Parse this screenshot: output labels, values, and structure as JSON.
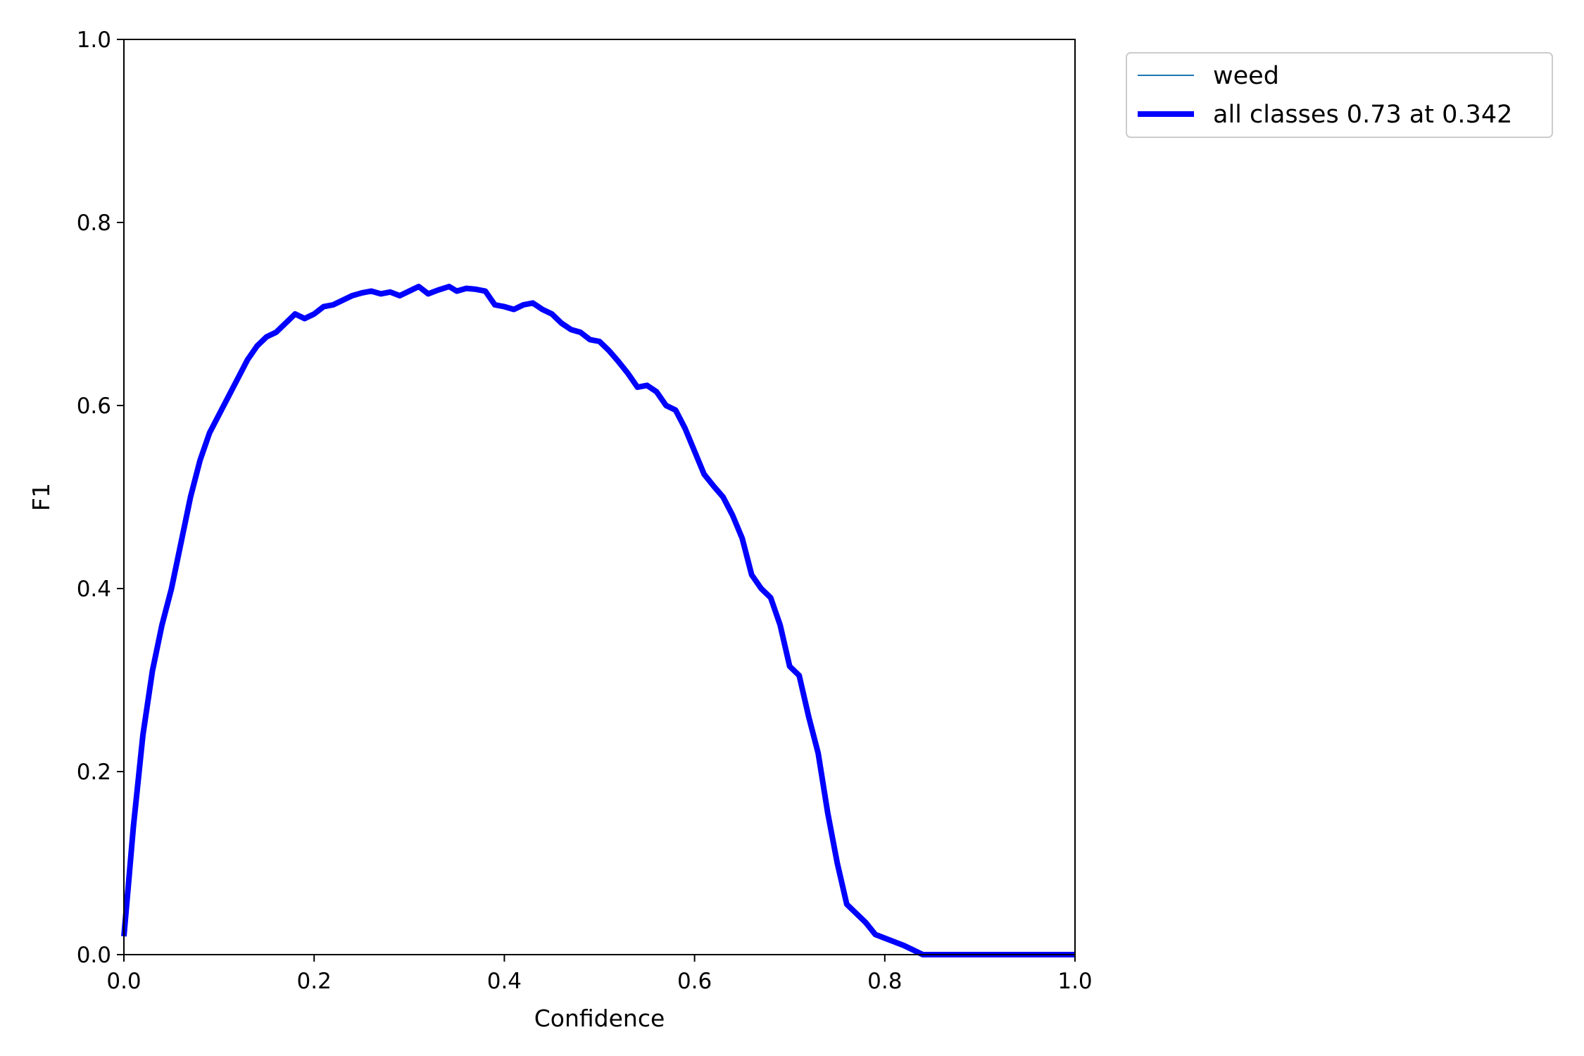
{
  "chart_data": {
    "type": "line",
    "title": "",
    "xlabel": "Confidence",
    "ylabel": "F1",
    "xlim": [
      0.0,
      1.0
    ],
    "ylim": [
      0.0,
      1.0
    ],
    "xticks": [
      "0.0",
      "0.2",
      "0.4",
      "0.6",
      "0.8",
      "1.0"
    ],
    "yticks": [
      "0.0",
      "0.2",
      "0.4",
      "0.6",
      "0.8",
      "1.0"
    ],
    "grid": false,
    "legend_placement": "outside top-right",
    "colors": {
      "weed": "#1f77b4",
      "all_classes": "#0000ff"
    },
    "series": [
      {
        "name": "weed",
        "key": "weed",
        "line_width": "thin",
        "x": [
          0.0,
          0.005,
          0.01,
          0.02,
          0.03,
          0.04,
          0.05,
          0.06,
          0.07,
          0.08,
          0.09,
          0.1,
          0.11,
          0.12,
          0.13,
          0.14,
          0.15,
          0.16,
          0.17,
          0.18,
          0.19,
          0.2,
          0.21,
          0.22,
          0.23,
          0.24,
          0.25,
          0.26,
          0.27,
          0.28,
          0.29,
          0.3,
          0.31,
          0.32,
          0.33,
          0.342,
          0.35,
          0.36,
          0.37,
          0.38,
          0.39,
          0.4,
          0.41,
          0.42,
          0.43,
          0.44,
          0.45,
          0.46,
          0.47,
          0.48,
          0.49,
          0.5,
          0.51,
          0.52,
          0.53,
          0.54,
          0.55,
          0.56,
          0.57,
          0.58,
          0.59,
          0.6,
          0.61,
          0.62,
          0.63,
          0.64,
          0.65,
          0.66,
          0.67,
          0.68,
          0.69,
          0.7,
          0.71,
          0.72,
          0.73,
          0.74,
          0.75,
          0.76,
          0.77,
          0.78,
          0.79,
          0.8,
          0.81,
          0.82,
          0.83,
          0.84,
          0.85,
          0.87,
          0.89,
          0.895,
          0.95,
          1.0
        ],
        "y": [
          0.02,
          0.08,
          0.14,
          0.24,
          0.31,
          0.36,
          0.4,
          0.45,
          0.5,
          0.54,
          0.57,
          0.59,
          0.61,
          0.63,
          0.65,
          0.665,
          0.675,
          0.68,
          0.69,
          0.7,
          0.695,
          0.7,
          0.708,
          0.71,
          0.715,
          0.72,
          0.723,
          0.725,
          0.722,
          0.724,
          0.72,
          0.725,
          0.73,
          0.722,
          0.726,
          0.73,
          0.725,
          0.728,
          0.727,
          0.725,
          0.71,
          0.708,
          0.705,
          0.71,
          0.712,
          0.705,
          0.7,
          0.69,
          0.683,
          0.68,
          0.672,
          0.67,
          0.66,
          0.648,
          0.635,
          0.62,
          0.622,
          0.615,
          0.6,
          0.595,
          0.575,
          0.55,
          0.525,
          0.512,
          0.5,
          0.48,
          0.455,
          0.415,
          0.4,
          0.39,
          0.36,
          0.315,
          0.305,
          0.26,
          0.22,
          0.155,
          0.1,
          0.055,
          0.045,
          0.035,
          0.022,
          0.018,
          0.014,
          0.01,
          0.005,
          0.0,
          0.0,
          0.0,
          0.0,
          0.0,
          0.0,
          0.0
        ]
      },
      {
        "name": "all classes 0.73 at 0.342",
        "key": "all_classes",
        "line_width": "thick",
        "x": [
          0.0,
          0.005,
          0.01,
          0.02,
          0.03,
          0.04,
          0.05,
          0.06,
          0.07,
          0.08,
          0.09,
          0.1,
          0.11,
          0.12,
          0.13,
          0.14,
          0.15,
          0.16,
          0.17,
          0.18,
          0.19,
          0.2,
          0.21,
          0.22,
          0.23,
          0.24,
          0.25,
          0.26,
          0.27,
          0.28,
          0.29,
          0.3,
          0.31,
          0.32,
          0.33,
          0.342,
          0.35,
          0.36,
          0.37,
          0.38,
          0.39,
          0.4,
          0.41,
          0.42,
          0.43,
          0.44,
          0.45,
          0.46,
          0.47,
          0.48,
          0.49,
          0.5,
          0.51,
          0.52,
          0.53,
          0.54,
          0.55,
          0.56,
          0.57,
          0.58,
          0.59,
          0.6,
          0.61,
          0.62,
          0.63,
          0.64,
          0.65,
          0.66,
          0.67,
          0.68,
          0.69,
          0.7,
          0.71,
          0.72,
          0.73,
          0.74,
          0.75,
          0.76,
          0.77,
          0.78,
          0.79,
          0.8,
          0.81,
          0.82,
          0.83,
          0.84,
          0.85,
          0.87,
          0.89,
          0.895,
          0.95,
          1.0
        ],
        "y": [
          0.02,
          0.08,
          0.14,
          0.24,
          0.31,
          0.36,
          0.4,
          0.45,
          0.5,
          0.54,
          0.57,
          0.59,
          0.61,
          0.63,
          0.65,
          0.665,
          0.675,
          0.68,
          0.69,
          0.7,
          0.695,
          0.7,
          0.708,
          0.71,
          0.715,
          0.72,
          0.723,
          0.725,
          0.722,
          0.724,
          0.72,
          0.725,
          0.73,
          0.722,
          0.726,
          0.73,
          0.725,
          0.728,
          0.727,
          0.725,
          0.71,
          0.708,
          0.705,
          0.71,
          0.712,
          0.705,
          0.7,
          0.69,
          0.683,
          0.68,
          0.672,
          0.67,
          0.66,
          0.648,
          0.635,
          0.62,
          0.622,
          0.615,
          0.6,
          0.595,
          0.575,
          0.55,
          0.525,
          0.512,
          0.5,
          0.48,
          0.455,
          0.415,
          0.4,
          0.39,
          0.36,
          0.315,
          0.305,
          0.26,
          0.22,
          0.155,
          0.1,
          0.055,
          0.045,
          0.035,
          0.022,
          0.018,
          0.014,
          0.01,
          0.005,
          0.0,
          0.0,
          0.0,
          0.0,
          0.0,
          0.0,
          0.0
        ]
      }
    ]
  }
}
